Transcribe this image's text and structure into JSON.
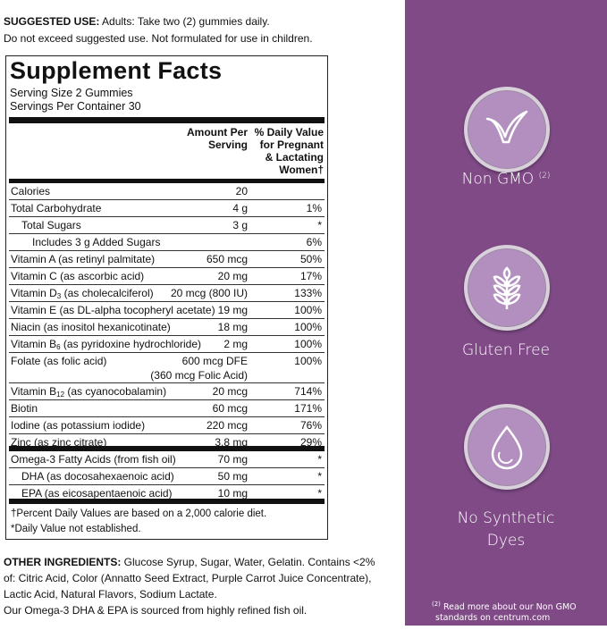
{
  "suggested_use": {
    "label": "SUGGESTED USE:",
    "text": " Adults: Take two (2) gummies daily.",
    "line2": "Do not exceed suggested use. Not formulated for use in children."
  },
  "facts": {
    "title": "Supplement Facts",
    "serving_size": "Serving Size 2 Gummies",
    "servings_per_container": "Servings Per Container 30",
    "col_amount": [
      "Amount Per",
      "Serving"
    ],
    "col_dv": [
      "% Daily Value",
      "for Pregnant",
      "& Lactating",
      "Women†"
    ],
    "rows": [
      {
        "label": "Calories",
        "amount": "20",
        "dv": ""
      },
      {
        "label": "Total Carbohydrate",
        "amount": "4 g",
        "dv": "1%"
      },
      {
        "label": "Total Sugars",
        "amount": "3 g",
        "dv": "*",
        "indent": 1
      },
      {
        "label": "Includes 3 g Added Sugars",
        "amount": "",
        "dv": "6%",
        "indent": 2
      },
      {
        "label": "Vitamin A (as retinyl palmitate)",
        "amount": "650 mcg",
        "dv": "50%"
      },
      {
        "label": "Vitamin C (as ascorbic acid)",
        "amount": "20 mg",
        "dv": "17%"
      },
      {
        "label": "Vitamin D",
        "sub": "3",
        "rest": " (as cholecalciferol)",
        "amount": "20 mcg (800 IU)",
        "dv": "133%"
      },
      {
        "label": "Vitamin E (as DL-alpha tocopheryl acetate)",
        "amount": "19 mg",
        "dv": "100%"
      },
      {
        "label": "Niacin (as inositol hexanicotinate)",
        "amount": "18 mg",
        "dv": "100%"
      },
      {
        "label": "Vitamin B",
        "sub": "6",
        "rest": " (as pyridoxine hydrochloride)",
        "amount": "2 mg",
        "dv": "100%"
      },
      {
        "label": "Folate (as folic acid)",
        "amount": "600 mcg DFE",
        "amount2": "(360 mcg Folic Acid)",
        "dv": "100%"
      },
      {
        "label": "Vitamin B",
        "sub": "12",
        "rest": " (as cyanocobalamin)",
        "amount": "20 mcg",
        "dv": "714%"
      },
      {
        "label": "Biotin",
        "amount": "60 mcg",
        "dv": "171%"
      },
      {
        "label": "Iodine (as potassium iodide)",
        "amount": "220 mcg",
        "dv": "76%"
      },
      {
        "label": "Zinc (as zinc citrate)",
        "amount": "3.8 mg",
        "dv": "29%"
      }
    ],
    "rows2": [
      {
        "label": "Omega-3 Fatty Acids (from fish oil)",
        "amount": "70 mg",
        "dv": "*"
      },
      {
        "label": "DHA (as docosahexaenoic acid)",
        "amount": "50 mg",
        "dv": "*",
        "indent": 1
      },
      {
        "label": "EPA (as eicosapentaenoic acid)",
        "amount": "10 mg",
        "dv": "*",
        "indent": 1
      }
    ],
    "footnote1": "†Percent Daily Values are based on a 2,000 calorie diet.",
    "footnote2": "*Daily Value not established."
  },
  "other": {
    "label": "OTHER INGREDIENTS:",
    "text": " Glucose Syrup, Sugar, Water, Gelatin. Contains <2% of: Citric Acid, Color (Annatto Seed Extract, Purple Carrot Juice Concentrate), Lactic Acid, Natural Flavors, Sodium Lactate.",
    "line2": "Our Omega-3 DHA & EPA is sourced from highly refined fish oil."
  },
  "panel": {
    "bg": "#7f4a86",
    "badges": [
      {
        "icon": "check-leaf-icon",
        "label": "Non GMO",
        "sup": "(2)"
      },
      {
        "icon": "wheat-icon",
        "label": "Gluten Free"
      },
      {
        "icon": "droplet-icon",
        "label": "No Synthetic",
        "label2": "Dyes"
      }
    ],
    "note_sup": "(2)",
    "note": " Read more about our Non GMO",
    "note2": "standards on centrum.com"
  }
}
